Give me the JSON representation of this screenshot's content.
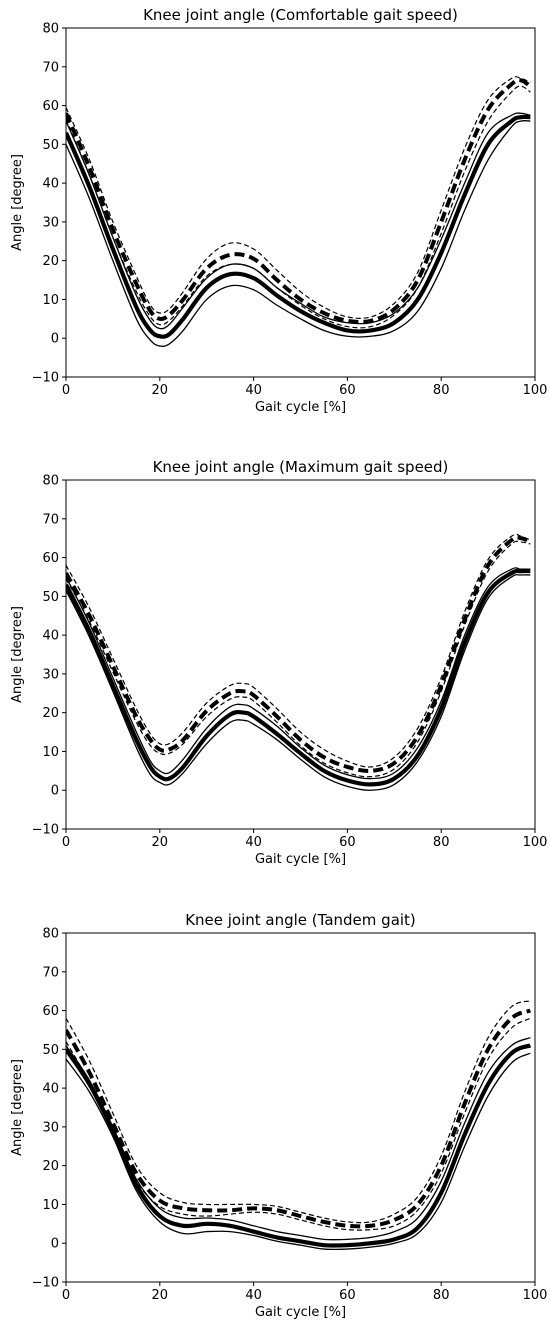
{
  "chart_data": [
    {
      "type": "line",
      "title": "Knee joint angle (Comfortable gait speed)",
      "xlabel": "Gait cycle [%]",
      "ylabel": "Angle [degree]",
      "xlim": [
        0,
        100
      ],
      "ylim": [
        -10,
        80
      ],
      "xticks": [
        0,
        20,
        40,
        60,
        80,
        100
      ],
      "yticks": [
        -10,
        0,
        10,
        20,
        30,
        40,
        50,
        60,
        70,
        80
      ],
      "grid": false,
      "x": [
        0,
        5,
        10,
        15,
        18,
        20,
        22,
        25,
        30,
        35,
        40,
        45,
        50,
        55,
        60,
        65,
        70,
        75,
        80,
        85,
        90,
        95,
        97,
        99
      ],
      "series": [
        {
          "style": "solid-thick",
          "values": [
            53,
            39,
            23,
            8,
            2,
            0.5,
            1,
            5,
            13,
            16.5,
            15.5,
            11,
            7,
            4,
            2,
            2,
            4,
            10,
            22,
            37,
            50,
            56,
            57,
            57
          ]
        },
        {
          "style": "solid-thin",
          "values": [
            56,
            42,
            26,
            11,
            4.5,
            2.5,
            3.5,
            8,
            15.5,
            19,
            18,
            13,
            9,
            5.5,
            4,
            4,
            6.5,
            13,
            25.5,
            40,
            53,
            57.5,
            58,
            57.5
          ]
        },
        {
          "style": "solid-thin",
          "values": [
            50,
            36,
            20,
            5,
            -0.5,
            -2,
            -1.5,
            2,
            10,
            13.5,
            12.5,
            8.5,
            5,
            2,
            0.5,
            0.5,
            2,
            7,
            18,
            33,
            46,
            54.5,
            56,
            56
          ]
        },
        {
          "style": "dashed-thick",
          "values": [
            58,
            44,
            28,
            14,
            7,
            5,
            6,
            10,
            18,
            21.5,
            20.5,
            15,
            10,
            6.5,
            4.5,
            4.5,
            7.5,
            15,
            30,
            46,
            59,
            65.5,
            66.5,
            65
          ]
        },
        {
          "style": "dashed-thin",
          "values": [
            59.5,
            46,
            30,
            16,
            8.5,
            6.5,
            7.5,
            12,
            20.5,
            24.5,
            23,
            17.5,
            12,
            8,
            5.5,
            5.5,
            9,
            17,
            33,
            49,
            61.5,
            67,
            67,
            66
          ]
        },
        {
          "style": "dashed-thin",
          "values": [
            56.5,
            42,
            26,
            12,
            5.5,
            3.5,
            4.5,
            8.5,
            16,
            19,
            18,
            13,
            8.5,
            5,
            3,
            3,
            6,
            13,
            27,
            43,
            56,
            63.5,
            65,
            63.5
          ]
        }
      ]
    },
    {
      "type": "line",
      "title": "Knee joint angle (Maximum gait speed)",
      "xlabel": "Gait cycle [%]",
      "ylabel": "Angle [degree]",
      "xlim": [
        0,
        100
      ],
      "ylim": [
        -10,
        80
      ],
      "xticks": [
        0,
        20,
        40,
        60,
        80,
        100
      ],
      "yticks": [
        -10,
        0,
        10,
        20,
        30,
        40,
        50,
        60,
        70,
        80
      ],
      "grid": false,
      "x": [
        0,
        5,
        10,
        15,
        18,
        20,
        22,
        25,
        30,
        35,
        38,
        40,
        45,
        50,
        55,
        60,
        65,
        70,
        75,
        80,
        85,
        90,
        95,
        97,
        99
      ],
      "series": [
        {
          "style": "solid-thick",
          "values": [
            53,
            41,
            27,
            13,
            6,
            3.5,
            3,
            6,
            14,
            19.5,
            20,
            19,
            14.5,
            9.5,
            5,
            2.5,
            1.5,
            3,
            9,
            21,
            38,
            51,
            56,
            56.5,
            56.5
          ]
        },
        {
          "style": "solid-thin",
          "values": [
            55,
            43,
            29,
            15,
            7.5,
            5,
            4.5,
            8,
            16,
            21.5,
            22,
            21,
            16.5,
            11,
            6.5,
            4,
            3,
            4.5,
            11,
            23,
            40,
            52.5,
            57,
            57,
            57
          ]
        },
        {
          "style": "solid-thin",
          "values": [
            51.5,
            39.5,
            25.5,
            11,
            4,
            2,
            1.5,
            4.5,
            12,
            17.5,
            18,
            17,
            13,
            8,
            3.5,
            1,
            0,
            1.5,
            7.5,
            19,
            36,
            49.5,
            55,
            55.5,
            55.5
          ]
        },
        {
          "style": "dashed-thick",
          "values": [
            56,
            45,
            32,
            19,
            13,
            10.5,
            10.5,
            13,
            20.5,
            25,
            25.5,
            24.5,
            19,
            13,
            8.5,
            6,
            5,
            7,
            14,
            27,
            44,
            58,
            64.5,
            65,
            64
          ]
        },
        {
          "style": "dashed-thin",
          "values": [
            58,
            47,
            34,
            21,
            14.5,
            12,
            12,
            15,
            22.5,
            27,
            27.5,
            26.5,
            21,
            15,
            10.5,
            7.5,
            6,
            8.5,
            16,
            29,
            46,
            59.5,
            65.5,
            65.5,
            64.5
          ]
        },
        {
          "style": "dashed-thin",
          "values": [
            54.5,
            43.5,
            30.5,
            17.5,
            11.5,
            9.5,
            9.5,
            12,
            19,
            23.5,
            24,
            23,
            17.5,
            11.5,
            7,
            4.5,
            3.5,
            5.5,
            12.5,
            25.5,
            42.5,
            56.5,
            63.5,
            64,
            63.5
          ]
        }
      ]
    },
    {
      "type": "line",
      "title": "Knee joint angle (Tandem gait)",
      "xlabel": "Gait cycle [%]",
      "ylabel": "Angle [degree]",
      "xlim": [
        0,
        100
      ],
      "ylim": [
        -10,
        80
      ],
      "xticks": [
        0,
        20,
        40,
        60,
        80,
        100
      ],
      "yticks": [
        -10,
        0,
        10,
        20,
        30,
        40,
        50,
        60,
        70,
        80
      ],
      "grid": false,
      "x": [
        0,
        5,
        10,
        15,
        20,
        25,
        30,
        35,
        40,
        45,
        50,
        55,
        60,
        65,
        70,
        75,
        80,
        85,
        90,
        95,
        99
      ],
      "series": [
        {
          "style": "solid-thick",
          "values": [
            50,
            41,
            29,
            15,
            7,
            4.5,
            5,
            4.5,
            3,
            1.5,
            0.5,
            -0.5,
            -0.5,
            0,
            1,
            4,
            13,
            28,
            41,
            49,
            51
          ]
        },
        {
          "style": "solid-thin",
          "values": [
            51,
            42,
            30,
            16.5,
            9,
            6.5,
            6.5,
            6,
            4.5,
            3,
            2,
            1,
            1,
            1.5,
            3,
            6.5,
            16,
            31,
            44,
            51,
            53
          ]
        },
        {
          "style": "solid-thin",
          "values": [
            47.5,
            39,
            27.5,
            13.5,
            5.5,
            2.5,
            3,
            3,
            2,
            0.5,
            -0.5,
            -1.5,
            -1.5,
            -1,
            0,
            2.5,
            10.5,
            25,
            38,
            46.5,
            49
          ]
        },
        {
          "style": "dashed-thick",
          "values": [
            55,
            44,
            31,
            18,
            11,
            9,
            8.5,
            8.5,
            9,
            8.5,
            7,
            5.5,
            4.5,
            4.5,
            6,
            10,
            20,
            36,
            50,
            58,
            60
          ]
        },
        {
          "style": "dashed-thin",
          "values": [
            58,
            47,
            33.5,
            20,
            13,
            10.5,
            10,
            10,
            10,
            9.5,
            8,
            6.5,
            5.5,
            5.5,
            7.5,
            12,
            22.5,
            39,
            53,
            61,
            62.5
          ]
        },
        {
          "style": "dashed-thin",
          "values": [
            52,
            41.5,
            29,
            16,
            9.5,
            7.5,
            7,
            7.5,
            8,
            7.5,
            6,
            4.5,
            3.5,
            3.5,
            4.5,
            8.5,
            18,
            33.5,
            47.5,
            55.5,
            58
          ]
        }
      ]
    }
  ]
}
